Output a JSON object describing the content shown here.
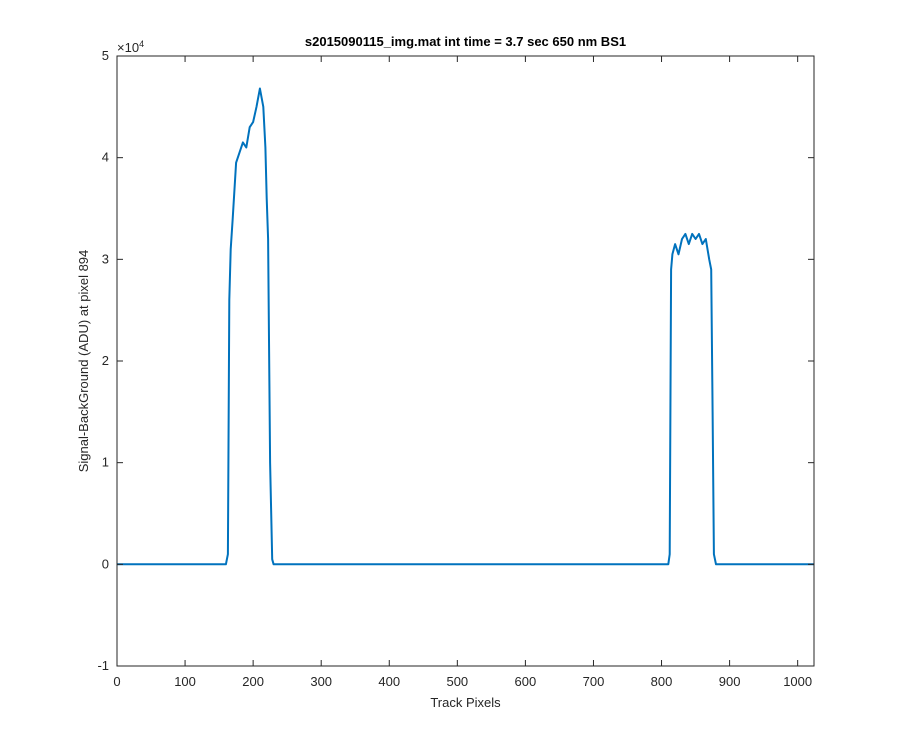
{
  "chart_data": {
    "type": "line",
    "title": "s2015090115_img.mat int time = 3.7 sec  650 nm BS1",
    "xlabel": "Track Pixels",
    "ylabel": "Signal-BackGround (ADU) at pixel 894",
    "xlim": [
      0,
      1024
    ],
    "ylim": [
      -1,
      5
    ],
    "y_exponent_label": "×10",
    "y_exponent_power": "4",
    "xticks": [
      0,
      100,
      200,
      300,
      400,
      500,
      600,
      700,
      800,
      900,
      1000
    ],
    "yticks": [
      -1,
      0,
      1,
      2,
      3,
      4,
      5
    ],
    "xtick_labels": [
      "0",
      "100",
      "200",
      "300",
      "400",
      "500",
      "600",
      "700",
      "800",
      "900",
      "1000"
    ],
    "ytick_labels": [
      "-1",
      "0",
      "1",
      "2",
      "3",
      "4",
      "5"
    ],
    "grid": false,
    "line_color": "#0072BD",
    "series": [
      {
        "x": [
          0,
          160,
          163,
          165,
          167,
          170,
          175,
          180,
          185,
          190,
          195,
          200,
          205,
          210,
          215,
          218,
          220,
          222,
          225,
          228,
          230,
          240,
          400,
          600,
          800,
          810,
          812,
          814,
          816,
          820,
          825,
          830,
          835,
          840,
          845,
          850,
          855,
          860,
          865,
          870,
          873,
          875,
          877,
          880,
          890,
          1024
        ],
        "y": [
          0,
          0,
          0.1,
          2.6,
          3.1,
          3.4,
          3.95,
          4.05,
          4.15,
          4.1,
          4.3,
          4.35,
          4.5,
          4.68,
          4.5,
          4.1,
          3.6,
          3.2,
          1.0,
          0.05,
          0,
          0,
          0,
          0,
          0,
          0,
          0.1,
          2.9,
          3.05,
          3.15,
          3.05,
          3.2,
          3.25,
          3.15,
          3.25,
          3.2,
          3.25,
          3.15,
          3.2,
          3.0,
          2.9,
          1.5,
          0.1,
          0,
          0,
          0
        ]
      }
    ]
  }
}
